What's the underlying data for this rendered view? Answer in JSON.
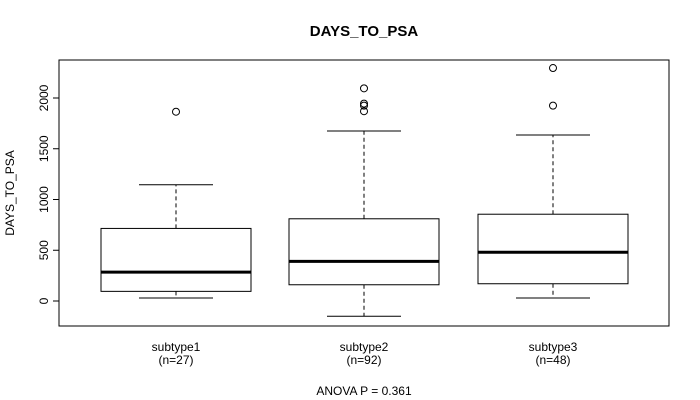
{
  "chart_data": {
    "type": "boxplot",
    "title": "DAYS_TO_PSA",
    "xlabel": "",
    "ylabel": "DAYS_TO_PSA",
    "ylim": [
      -250,
      2380
    ],
    "yticks": [
      0,
      500,
      1000,
      1500,
      2000
    ],
    "ytick_labels": [
      "0",
      "500",
      "1000",
      "1500",
      "2000"
    ],
    "grid": false,
    "categories": [
      "subtype1",
      "subtype2",
      "subtype3"
    ],
    "counts": [
      "(n=27)",
      "(n=92)",
      "(n=48)"
    ],
    "boxes": [
      {
        "whisker_low": 30,
        "q1": 95,
        "median": 285,
        "q3": 715,
        "whisker_high": 1145,
        "outliers": [
          1865
        ]
      },
      {
        "whisker_low": -150,
        "q1": 160,
        "median": 390,
        "q3": 810,
        "whisker_high": 1675,
        "outliers": [
          1870,
          1925,
          1945,
          2095
        ]
      },
      {
        "whisker_low": 30,
        "q1": 170,
        "median": 480,
        "q3": 855,
        "whisker_high": 1635,
        "outliers": [
          1925,
          2295
        ]
      }
    ],
    "annotation": "ANOVA P = 0.361"
  }
}
